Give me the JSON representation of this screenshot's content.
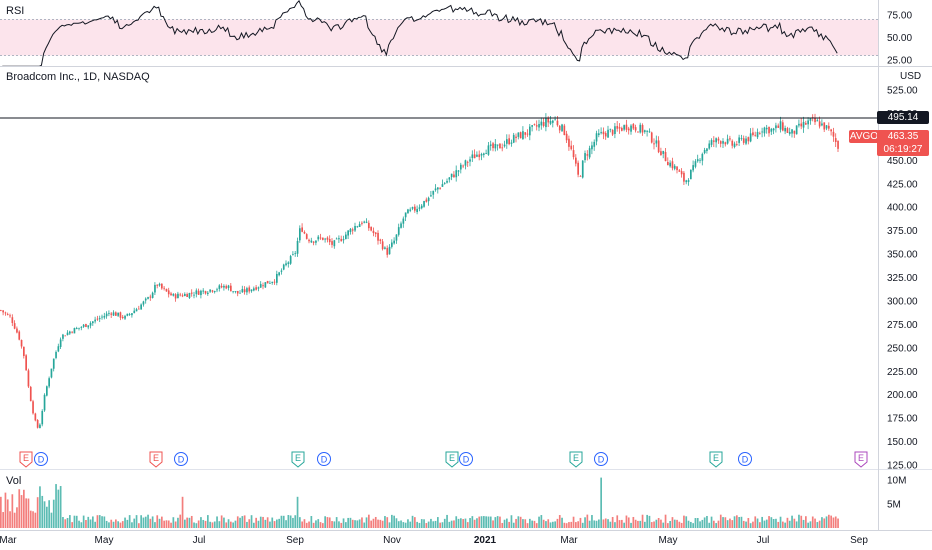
{
  "rsi_pane": {
    "title": "RSI",
    "ticks": [
      "75.00",
      "50.00",
      "25.00"
    ],
    "tick_values": [
      75,
      50,
      25
    ],
    "band": [
      30,
      70
    ],
    "range": [
      18,
      95
    ]
  },
  "price_pane": {
    "title": "Broadcom Inc., 1D, NASDAQ",
    "currency": "USD",
    "ticks": [
      "525.00",
      "500.00",
      "475.00",
      "450.00",
      "425.00",
      "400.00",
      "375.00",
      "350.00",
      "325.00",
      "300.00",
      "275.00",
      "250.00",
      "225.00",
      "200.00",
      "175.00",
      "150.00",
      "125.00"
    ],
    "tick_values": [
      525,
      500,
      475,
      450,
      425,
      400,
      375,
      350,
      325,
      300,
      275,
      250,
      225,
      200,
      175,
      150,
      125
    ],
    "resistance_label": "495.14",
    "resistance_value": 495.14,
    "ticker_label": "AVGO",
    "last_price_label": "463.35",
    "countdown_label": "06:19:27",
    "range": [
      121.5,
      523.5
    ]
  },
  "volume_pane": {
    "title": "Vol",
    "ticks": [
      "10M",
      "5M"
    ],
    "tick_values": [
      10,
      5
    ]
  },
  "events": [
    {
      "type": "E",
      "label": "E",
      "x": 26,
      "color": "#ef5350"
    },
    {
      "type": "D",
      "label": "D",
      "x": 41,
      "color": "#2962ff"
    },
    {
      "type": "E",
      "label": "E",
      "x": 156,
      "color": "#ef5350"
    },
    {
      "type": "D",
      "label": "D",
      "x": 181,
      "color": "#2962ff"
    },
    {
      "type": "E",
      "label": "E",
      "x": 298,
      "color": "#26a69a"
    },
    {
      "type": "D",
      "label": "D",
      "x": 324,
      "color": "#2962ff"
    },
    {
      "type": "E",
      "label": "E",
      "x": 452,
      "color": "#26a69a"
    },
    {
      "type": "D",
      "label": "D",
      "x": 466,
      "color": "#2962ff"
    },
    {
      "type": "E",
      "label": "E",
      "x": 576,
      "color": "#26a69a"
    },
    {
      "type": "D",
      "label": "D",
      "x": 601,
      "color": "#2962ff"
    },
    {
      "type": "E",
      "label": "E",
      "x": 716,
      "color": "#26a69a"
    },
    {
      "type": "D",
      "label": "D",
      "x": 745,
      "color": "#2962ff"
    },
    {
      "type": "E",
      "label": "E",
      "x": 861,
      "color": "#ab47bc"
    }
  ],
  "time_axis": [
    {
      "label": "Mar",
      "x": 8,
      "bold": false
    },
    {
      "label": "May",
      "x": 104,
      "bold": false
    },
    {
      "label": "Jul",
      "x": 199,
      "bold": false
    },
    {
      "label": "Sep",
      "x": 295,
      "bold": false
    },
    {
      "label": "Nov",
      "x": 392,
      "bold": false
    },
    {
      "label": "2021",
      "x": 485,
      "bold": true
    },
    {
      "label": "Mar",
      "x": 569,
      "bold": false
    },
    {
      "label": "May",
      "x": 668,
      "bold": false
    },
    {
      "label": "Jul",
      "x": 763,
      "bold": false
    },
    {
      "label": "Sep",
      "x": 859,
      "bold": false
    }
  ],
  "colors": {
    "up": "#26a69a",
    "down": "#ef5350",
    "rsi_line": "#131722",
    "rsi_band": "#fce4ec",
    "earnings_upcoming": "#ab47bc",
    "dividend": "#2962ff",
    "price_badge": "#ef5350",
    "resistance_badge": "#131722"
  },
  "chart_data": {
    "type": "candlestick",
    "symbol": "AVGO",
    "timeframe": "1D",
    "anchors": [
      [
        0,
        290
      ],
      [
        10,
        282
      ],
      [
        18,
        262
      ],
      [
        24,
        238
      ],
      [
        28,
        205
      ],
      [
        34,
        172
      ],
      [
        38,
        162
      ],
      [
        44,
        200
      ],
      [
        52,
        235
      ],
      [
        60,
        262
      ],
      [
        70,
        268
      ],
      [
        82,
        273
      ],
      [
        96,
        280
      ],
      [
        110,
        288
      ],
      [
        124,
        282
      ],
      [
        136,
        292
      ],
      [
        148,
        303
      ],
      [
        156,
        318
      ],
      [
        162,
        312
      ],
      [
        172,
        305
      ],
      [
        185,
        307
      ],
      [
        200,
        310
      ],
      [
        214,
        313
      ],
      [
        226,
        316
      ],
      [
        236,
        308
      ],
      [
        248,
        312
      ],
      [
        262,
        318
      ],
      [
        274,
        323
      ],
      [
        286,
        340
      ],
      [
        294,
        350
      ],
      [
        300,
        380
      ],
      [
        306,
        367
      ],
      [
        312,
        365
      ],
      [
        322,
        367
      ],
      [
        332,
        360
      ],
      [
        342,
        368
      ],
      [
        352,
        378
      ],
      [
        362,
        385
      ],
      [
        370,
        376
      ],
      [
        380,
        362
      ],
      [
        386,
        351
      ],
      [
        394,
        365
      ],
      [
        404,
        392
      ],
      [
        414,
        398
      ],
      [
        426,
        408
      ],
      [
        436,
        420
      ],
      [
        446,
        428
      ],
      [
        458,
        440
      ],
      [
        470,
        452
      ],
      [
        484,
        462
      ],
      [
        496,
        463
      ],
      [
        508,
        471
      ],
      [
        520,
        477
      ],
      [
        530,
        482
      ],
      [
        542,
        490
      ],
      [
        554,
        493
      ],
      [
        564,
        480
      ],
      [
        572,
        455
      ],
      [
        578,
        430
      ],
      [
        584,
        455
      ],
      [
        590,
        463
      ],
      [
        596,
        475
      ],
      [
        606,
        480
      ],
      [
        616,
        482
      ],
      [
        626,
        487
      ],
      [
        636,
        485
      ],
      [
        646,
        480
      ],
      [
        656,
        466
      ],
      [
        666,
        450
      ],
      [
        676,
        440
      ],
      [
        684,
        427
      ],
      [
        692,
        440
      ],
      [
        702,
        460
      ],
      [
        712,
        470
      ],
      [
        722,
        472
      ],
      [
        732,
        466
      ],
      [
        742,
        472
      ],
      [
        752,
        475
      ],
      [
        762,
        485
      ],
      [
        772,
        482
      ],
      [
        780,
        487
      ],
      [
        790,
        478
      ],
      [
        800,
        486
      ],
      [
        808,
        491
      ],
      [
        818,
        490
      ],
      [
        826,
        484
      ],
      [
        832,
        476
      ],
      [
        838,
        463
      ]
    ],
    "resistance": 495.14,
    "last_close": 463.35
  }
}
